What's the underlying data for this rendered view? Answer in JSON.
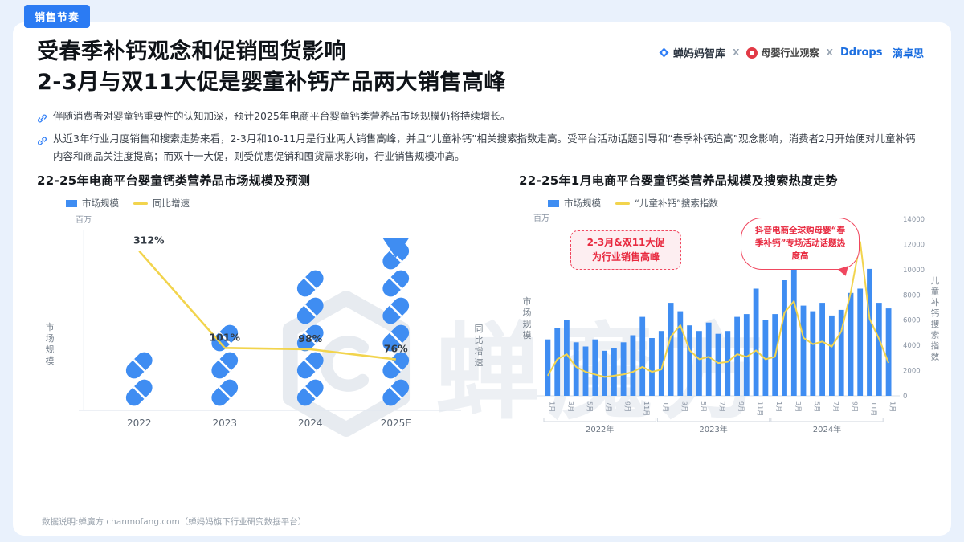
{
  "page": {
    "badge": "销售节奏",
    "title": {
      "line1": "受春季补钙观念和促销囤货影响",
      "line2": "2-3月与双11大促是婴童补钙产品两大销售高峰"
    },
    "header_logos": {
      "brand1": "蝉妈妈智库",
      "sep1": "X",
      "brand2": "母婴行业观察",
      "sep2": "X",
      "brand3_en": "Ddrops",
      "brand3_cn": "滴卓思"
    },
    "bullets": [
      "伴随消费者对婴童钙重要性的认知加深，预计2025年电商平台婴童钙类营养品市场规模仍将持续增长。",
      "从近3年行业月度销售和搜索走势来看，2-3月和10-11月是行业两大销售高峰，并且“儿童补钙”相关搜索指数走高。受平台活动话题引导和“春季补钙追高”观念影响，消费者2月开始便对儿童补钙内容和商品关注度提高；而双十一大促，则受优惠促销和囤货需求影响，行业销售规模冲高。"
    ],
    "watermark": "蝉魔方",
    "footer": "数据说明:蝉魔方 chanmofang.com（蝉妈妈旗下行业研究数据平台）"
  },
  "chart_data": [
    {
      "id": "market_forecast",
      "type": "bar",
      "title": "22-25年电商平台婴童钙类营养品市场规模及预测",
      "unit_label": "百万",
      "axis_left_label": "市场规模",
      "axis_right_label": "同比增速",
      "legend": [
        "市场规模",
        "同比增速"
      ],
      "categories": [
        "2022",
        "2023",
        "2024",
        "2025E"
      ],
      "capsule_counts": [
        2,
        3,
        5,
        7
      ],
      "yoy_growth_pct": [
        312,
        101,
        98,
        76
      ],
      "yoy_growth_labels": [
        "312%",
        "101%",
        "98%",
        "76%"
      ]
    },
    {
      "id": "monthly_trend",
      "type": "bar",
      "title": "22-25年1月电商平台婴童钙类营养品规模及搜索热度走势",
      "unit_label": "百万",
      "axis_left_label": "市场规模",
      "axis_right_label": "儿童补钙搜索指数",
      "legend": [
        "市场规模",
        "“儿童补钙”搜索指数"
      ],
      "x": [
        "1月",
        "2月",
        "3月",
        "4月",
        "5月",
        "6月",
        "7月",
        "8月",
        "9月",
        "10月",
        "11月",
        "12月",
        "1月",
        "2月",
        "3月",
        "4月",
        "5月",
        "6月",
        "7月",
        "8月",
        "9月",
        "10月",
        "11月",
        "12月",
        "1月",
        "2月",
        "3月",
        "4月",
        "5月",
        "6月",
        "7月",
        "8月",
        "9月",
        "10月",
        "11月",
        "12月",
        "1月"
      ],
      "year_groups": [
        {
          "label": "2022年",
          "from": 0,
          "to": 11
        },
        {
          "label": "2023年",
          "from": 12,
          "to": 23
        },
        {
          "label": "2024年",
          "from": 24,
          "to": 35
        }
      ],
      "series": [
        {
          "name": "市场规模",
          "kind": "bar",
          "axis": "left",
          "values": [
            40,
            48,
            54,
            38,
            35,
            40,
            32,
            34,
            38,
            43,
            56,
            41,
            46,
            66,
            60,
            50,
            46,
            52,
            44,
            46,
            56,
            58,
            76,
            54,
            58,
            82,
            100,
            64,
            60,
            66,
            57,
            61,
            73,
            76,
            90,
            66,
            62
          ]
        },
        {
          "name": "“儿童补钙”搜索指数",
          "kind": "line",
          "axis": "right",
          "values": [
            1600,
            2900,
            3300,
            2300,
            1900,
            1700,
            1500,
            1600,
            1700,
            1900,
            2300,
            1900,
            2100,
            4700,
            5600,
            3600,
            2900,
            3100,
            2600,
            2700,
            3300,
            3100,
            3600,
            2900,
            3100,
            6600,
            7500,
            4600,
            4100,
            4300,
            3900,
            5100,
            8200,
            12200,
            6100,
            4500,
            2600
          ]
        }
      ],
      "y_right": {
        "min": 0,
        "max": 14000,
        "ticks": [
          0,
          2000,
          4000,
          6000,
          8000,
          10000,
          12000,
          14000
        ]
      },
      "annotations": [
        {
          "id": "sales-peak",
          "text_lines": [
            "2-3月&双11大促",
            "为行业销售高峰"
          ]
        },
        {
          "id": "douyin-topic",
          "text": "抖音电商全球购母婴“春季补钙”专场活动话题热度高"
        }
      ]
    }
  ]
}
